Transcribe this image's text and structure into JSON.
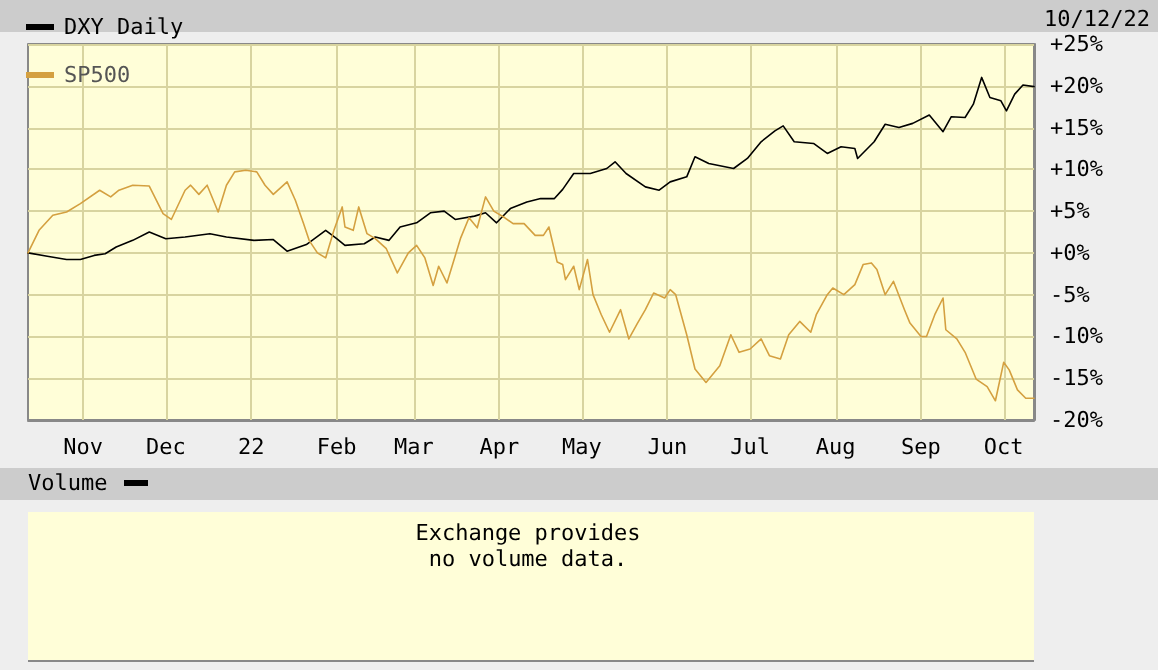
{
  "chart_data": [
    {
      "type": "line",
      "annotations": [
        "10/12/22"
      ],
      "series": [
        {
          "name": "DXY Daily",
          "color": "#000000",
          "x": [
            "2021-10-12",
            "2021-10-19",
            "2021-10-26",
            "2021-10-31",
            "2021-11-05",
            "2021-11-09",
            "2021-11-13",
            "2021-11-19",
            "2021-11-25",
            "2021-12-01",
            "2021-12-08",
            "2021-12-17",
            "2021-12-23",
            "2022-01-02",
            "2022-01-09",
            "2022-01-14",
            "2022-01-21",
            "2022-01-28",
            "2022-02-01",
            "2022-02-04",
            "2022-02-11",
            "2022-02-15",
            "2022-02-20",
            "2022-02-24",
            "2022-03-02",
            "2022-03-07",
            "2022-03-12",
            "2022-03-16",
            "2022-03-23",
            "2022-03-27",
            "2022-03-31",
            "2022-04-05",
            "2022-04-11",
            "2022-04-16",
            "2022-04-21",
            "2022-04-24",
            "2022-04-28",
            "2022-05-04",
            "2022-05-10",
            "2022-05-13",
            "2022-05-17",
            "2022-05-24",
            "2022-05-29",
            "2022-06-02",
            "2022-06-08",
            "2022-06-11",
            "2022-06-16",
            "2022-06-25",
            "2022-06-30",
            "2022-07-05",
            "2022-07-10",
            "2022-07-13",
            "2022-07-17",
            "2022-07-24",
            "2022-07-29",
            "2022-08-03",
            "2022-08-08",
            "2022-08-09",
            "2022-08-15",
            "2022-08-19",
            "2022-08-24",
            "2022-08-29",
            "2022-09-04",
            "2022-09-09",
            "2022-09-12",
            "2022-09-17",
            "2022-09-20",
            "2022-09-23",
            "2022-09-26",
            "2022-09-30",
            "2022-10-02",
            "2022-10-05",
            "2022-10-08",
            "2022-10-12"
          ],
          "values": [
            0,
            -0.4,
            -0.8,
            -0.8,
            -0.3,
            -0.1,
            0.7,
            1.5,
            2.5,
            1.7,
            1.9,
            2.3,
            1.9,
            1.5,
            1.6,
            0.2,
            1.0,
            2.7,
            1.7,
            0.9,
            1.1,
            1.9,
            1.5,
            3.1,
            3.6,
            4.8,
            5.0,
            4.0,
            4.4,
            4.8,
            3.6,
            5.3,
            6.1,
            6.5,
            6.5,
            7.6,
            9.5,
            9.5,
            10.1,
            10.9,
            9.5,
            7.9,
            7.5,
            8.5,
            9.1,
            11.5,
            10.7,
            10.1,
            11.3,
            13.3,
            14.6,
            15.2,
            13.3,
            13.1,
            11.9,
            12.7,
            12.5,
            11.3,
            13.3,
            15.4,
            15.0,
            15.5,
            16.5,
            14.5,
            16.3,
            16.2,
            17.8,
            21.0,
            18.6,
            18.2,
            17.0,
            19.0,
            20.1,
            19.9
          ]
        },
        {
          "name": "SP500",
          "color": "#d4a040",
          "x": [
            "2021-10-12",
            "2021-10-16",
            "2021-10-21",
            "2021-10-26",
            "2021-10-31",
            "2021-11-07",
            "2021-11-11",
            "2021-11-14",
            "2021-11-19",
            "2021-11-25",
            "2021-11-30",
            "2021-12-03",
            "2021-12-08",
            "2021-12-10",
            "2021-12-13",
            "2021-12-16",
            "2021-12-20",
            "2021-12-23",
            "2021-12-26",
            "2021-12-30",
            "2022-01-03",
            "2022-01-06",
            "2022-01-09",
            "2022-01-14",
            "2022-01-17",
            "2022-01-20",
            "2022-01-22",
            "2022-01-25",
            "2022-01-28",
            "2022-01-31",
            "2022-02-03",
            "2022-02-04",
            "2022-02-07",
            "2022-02-09",
            "2022-02-12",
            "2022-02-15",
            "2022-02-19",
            "2022-02-23",
            "2022-02-27",
            "2022-03-02",
            "2022-03-05",
            "2022-03-08",
            "2022-03-10",
            "2022-03-13",
            "2022-03-18",
            "2022-03-21",
            "2022-03-24",
            "2022-03-27",
            "2022-03-30",
            "2022-04-03",
            "2022-04-06",
            "2022-04-10",
            "2022-04-14",
            "2022-04-17",
            "2022-04-19",
            "2022-04-22",
            "2022-04-24",
            "2022-04-25",
            "2022-04-28",
            "2022-04-30",
            "2022-05-03",
            "2022-05-05",
            "2022-05-08",
            "2022-05-11",
            "2022-05-15",
            "2022-05-18",
            "2022-05-21",
            "2022-05-24",
            "2022-05-27",
            "2022-05-31",
            "2022-06-02",
            "2022-06-04",
            "2022-06-08",
            "2022-06-11",
            "2022-06-15",
            "2022-06-20",
            "2022-06-24",
            "2022-06-27",
            "2022-07-01",
            "2022-07-05",
            "2022-07-08",
            "2022-07-12",
            "2022-07-15",
            "2022-07-19",
            "2022-07-23",
            "2022-07-25",
            "2022-07-29",
            "2022-07-31",
            "2022-08-04",
            "2022-08-08",
            "2022-08-11",
            "2022-08-14",
            "2022-08-16",
            "2022-08-19",
            "2022-08-22",
            "2022-08-26",
            "2022-08-28",
            "2022-09-01",
            "2022-09-03",
            "2022-09-06",
            "2022-09-09",
            "2022-09-10",
            "2022-09-14",
            "2022-09-17",
            "2022-09-21",
            "2022-09-25",
            "2022-09-28",
            "2022-10-01",
            "2022-10-03",
            "2022-10-06",
            "2022-10-09",
            "2022-10-12"
          ],
          "values": [
            0,
            2.7,
            4.5,
            4.9,
            5.9,
            7.5,
            6.7,
            7.5,
            8.1,
            8.0,
            4.7,
            4.0,
            7.5,
            8.1,
            7.0,
            8.1,
            4.9,
            8.1,
            9.7,
            9.9,
            9.7,
            8.1,
            7.0,
            8.5,
            6.3,
            3.5,
            1.5,
            0,
            -0.6,
            2.7,
            5.5,
            3.1,
            2.7,
            5.5,
            2.3,
            1.7,
            0.5,
            -2.4,
            0,
            0.9,
            -0.6,
            -3.9,
            -1.6,
            -3.6,
            1.8,
            4.2,
            3.0,
            6.7,
            5.0,
            4.2,
            3.5,
            3.5,
            2.1,
            2.1,
            3.1,
            -1.1,
            -1.4,
            -3.2,
            -1.6,
            -4.4,
            -0.8,
            -5.0,
            -7.4,
            -9.5,
            -6.8,
            -10.3,
            -8.5,
            -6.8,
            -4.8,
            -5.4,
            -4.4,
            -5.0,
            -9.8,
            -13.9,
            -15.5,
            -13.5,
            -9.8,
            -11.9,
            -11.5,
            -10.3,
            -12.3,
            -12.7,
            -9.8,
            -8.2,
            -9.5,
            -7.4,
            -5.0,
            -4.2,
            -5.0,
            -3.8,
            -1.4,
            -1.2,
            -2.0,
            -5.0,
            -3.4,
            -6.8,
            -8.4,
            -10.0,
            -10.0,
            -7.4,
            -5.4,
            -9.2,
            -10.3,
            -11.9,
            -15.1,
            -16.0,
            -17.7,
            -13.1,
            -14.0,
            -16.4,
            -17.4,
            -17.4
          ]
        }
      ],
      "xlim": [
        "2021-10-12",
        "2022-10-12"
      ],
      "xticks": [
        {
          "value": "2021-11-01",
          "label": "Nov"
        },
        {
          "value": "2021-12-01",
          "label": "Dec"
        },
        {
          "value": "2022-01-01",
          "label": "22"
        },
        {
          "value": "2022-02-01",
          "label": "Feb"
        },
        {
          "value": "2022-03-01",
          "label": "Mar"
        },
        {
          "value": "2022-04-01",
          "label": "Apr"
        },
        {
          "value": "2022-05-01",
          "label": "May"
        },
        {
          "value": "2022-06-01",
          "label": "Jun"
        },
        {
          "value": "2022-07-01",
          "label": "Jul"
        },
        {
          "value": "2022-08-01",
          "label": "Aug"
        },
        {
          "value": "2022-09-01",
          "label": "Sep"
        },
        {
          "value": "2022-10-01",
          "label": "Oct"
        }
      ],
      "ylim": [
        -20,
        25
      ],
      "yticks": [
        {
          "value": -20,
          "label": "-20%"
        },
        {
          "value": -15,
          "label": "-15%"
        },
        {
          "value": -10,
          "label": "-10%"
        },
        {
          "value": -5,
          "label": "-5%"
        },
        {
          "value": 0,
          "label": "+0%"
        },
        {
          "value": 5,
          "label": "+5%"
        },
        {
          "value": 10,
          "label": "+10%"
        },
        {
          "value": 15,
          "label": "+15%"
        },
        {
          "value": 20,
          "label": "+20%"
        },
        {
          "value": 25,
          "label": "+25%"
        }
      ],
      "grid": true,
      "legend": "top left",
      "marker": "none",
      "line_style": "solid"
    },
    {
      "type": "other",
      "title": "Volume",
      "annotations": [
        "Exchange provides no volume data."
      ]
    }
  ]
}
